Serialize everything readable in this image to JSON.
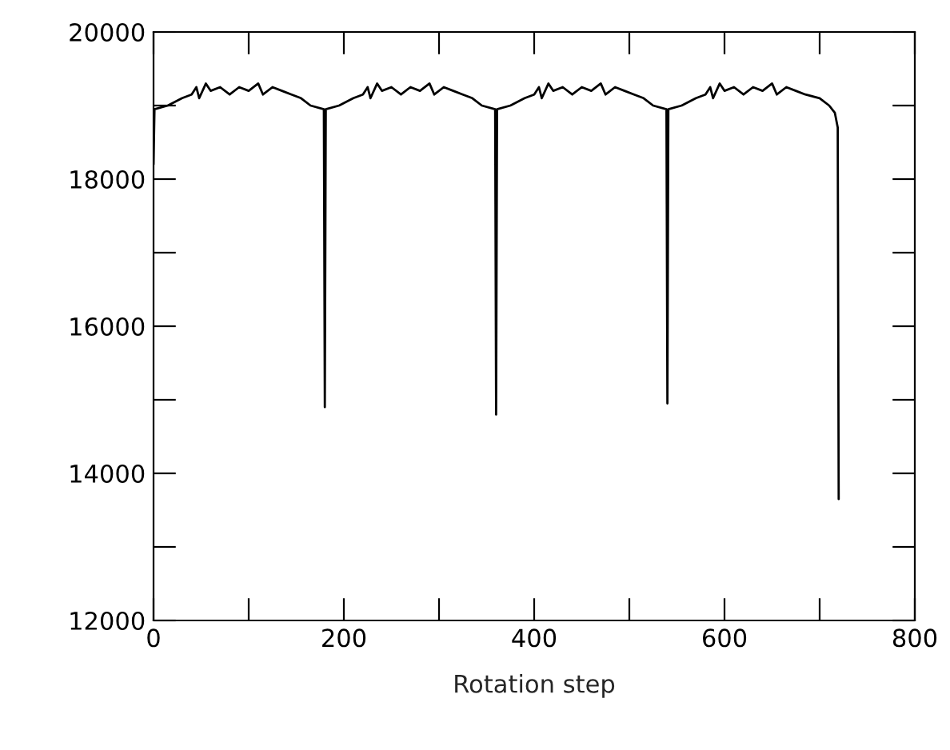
{
  "chart_data": {
    "type": "line",
    "xlabel": "Rotation step",
    "x": [
      0,
      1,
      15,
      30,
      40,
      45,
      48,
      55,
      60,
      70,
      80,
      90,
      100,
      110,
      115,
      125,
      135,
      145,
      155,
      165,
      179,
      180,
      181,
      195,
      210,
      220,
      225,
      228,
      235,
      240,
      250,
      260,
      270,
      280,
      290,
      295,
      305,
      315,
      325,
      335,
      345,
      359,
      360,
      361,
      375,
      390,
      400,
      405,
      408,
      415,
      420,
      430,
      440,
      450,
      460,
      470,
      475,
      485,
      495,
      505,
      515,
      525,
      539,
      540,
      541,
      555,
      570,
      580,
      585,
      588,
      595,
      600,
      610,
      620,
      630,
      640,
      650,
      655,
      665,
      675,
      685,
      700,
      710,
      716,
      719,
      720
    ],
    "series": [
      {
        "color": "#000000",
        "values": [
          18200,
          18950,
          19000,
          19100,
          19150,
          19250,
          19100,
          19300,
          19200,
          19250,
          19150,
          19250,
          19200,
          19300,
          19150,
          19250,
          19200,
          19150,
          19100,
          19000,
          18950,
          14900,
          18950,
          19000,
          19100,
          19150,
          19250,
          19100,
          19300,
          19200,
          19250,
          19150,
          19250,
          19200,
          19300,
          19150,
          19250,
          19200,
          19150,
          19100,
          19000,
          18950,
          14800,
          18950,
          19000,
          19100,
          19150,
          19250,
          19100,
          19300,
          19200,
          19250,
          19150,
          19250,
          19200,
          19300,
          19150,
          19250,
          19200,
          19150,
          19100,
          19000,
          18950,
          14950,
          18950,
          19000,
          19100,
          19150,
          19250,
          19100,
          19300,
          19200,
          19250,
          19150,
          19250,
          19200,
          19300,
          19150,
          19250,
          19200,
          19150,
          19100,
          19000,
          18900,
          18700,
          13650
        ]
      }
    ],
    "xlim": [
      0,
      800
    ],
    "xticks": [
      0,
      {
        "value": 100,
        "label": null
      },
      200,
      {
        "value": 300,
        "label": null
      },
      400,
      {
        "value": 500,
        "label": null
      },
      600,
      {
        "value": 700,
        "label": null
      },
      800
    ],
    "ylim": [
      12000,
      20000
    ],
    "yticks": [
      12000,
      {
        "value": 13000,
        "label": null
      },
      14000,
      {
        "value": 15000,
        "label": null
      },
      16000,
      {
        "value": 17000,
        "label": null
      },
      18000,
      {
        "value": 19000,
        "label": null
      },
      20000
    ],
    "marker": "none",
    "line_style": "solid"
  }
}
